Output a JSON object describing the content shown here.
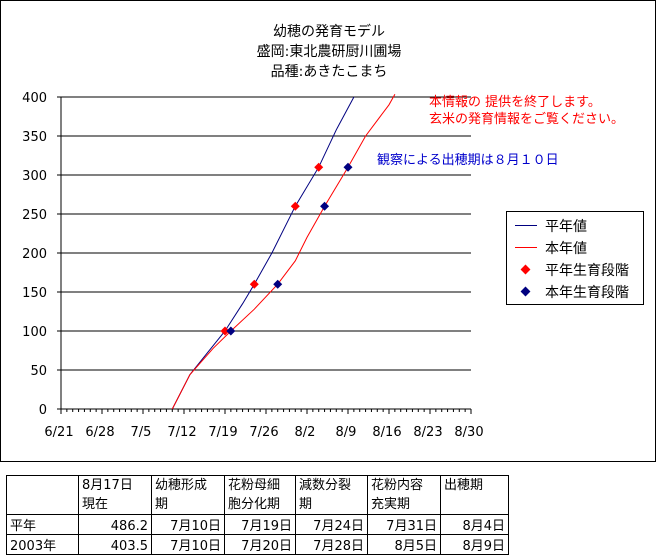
{
  "chart_data": {
    "type": "line",
    "title_lines": [
      "幼穂の発育モデル",
      "盛岡:東北農研厨川圃場",
      "品種:あきたこまち"
    ],
    "x_tick_labels": [
      "6/21",
      "6/28",
      "7/5",
      "7/12",
      "7/19",
      "7/26",
      "8/2",
      "8/9",
      "8/16",
      "8/23",
      "8/30"
    ],
    "x_tick_dates": [
      "2003-06-21",
      "2003-06-28",
      "2003-07-05",
      "2003-07-12",
      "2003-07-19",
      "2003-07-26",
      "2003-08-02",
      "2003-08-09",
      "2003-08-16",
      "2003-08-23",
      "2003-08-30"
    ],
    "ylim": [
      0,
      400
    ],
    "y_ticks": [
      0,
      50,
      100,
      150,
      200,
      250,
      300,
      350,
      400
    ],
    "grid": "horizontal",
    "legend_position": "right",
    "series": [
      {
        "name": "平年値",
        "style": "line",
        "color": "#000080",
        "points": [
          [
            "2003-07-10",
            0
          ],
          [
            "2003-07-13",
            44
          ],
          [
            "2003-07-16",
            72
          ],
          [
            "2003-07-19",
            100
          ],
          [
            "2003-07-22",
            135
          ],
          [
            "2003-07-24",
            160
          ],
          [
            "2003-07-27",
            200
          ],
          [
            "2003-07-31",
            260
          ],
          [
            "2003-08-04",
            310
          ],
          [
            "2003-08-07",
            358
          ],
          [
            "2003-08-10",
            400
          ]
        ]
      },
      {
        "name": "本年値",
        "style": "line",
        "color": "#ff0000",
        "points": [
          [
            "2003-07-10",
            0
          ],
          [
            "2003-07-13",
            44
          ],
          [
            "2003-07-17",
            78
          ],
          [
            "2003-07-20",
            100
          ],
          [
            "2003-07-24",
            128
          ],
          [
            "2003-07-28",
            160
          ],
          [
            "2003-07-31",
            190
          ],
          [
            "2003-08-02",
            220
          ],
          [
            "2003-08-05",
            260
          ],
          [
            "2003-08-09",
            310
          ],
          [
            "2003-08-12",
            350
          ],
          [
            "2003-08-16",
            390
          ],
          [
            "2003-08-17",
            403.5
          ]
        ]
      },
      {
        "name": "平年生育段階",
        "style": "marker",
        "color": "#ff0000",
        "points": [
          [
            "2003-07-19",
            100
          ],
          [
            "2003-07-24",
            160
          ],
          [
            "2003-07-31",
            260
          ],
          [
            "2003-08-04",
            310
          ]
        ]
      },
      {
        "name": "本年生育段階",
        "style": "marker",
        "color": "#000080",
        "points": [
          [
            "2003-07-20",
            100
          ],
          [
            "2003-07-28",
            160
          ],
          [
            "2003-08-05",
            260
          ],
          [
            "2003-08-09",
            310
          ]
        ]
      }
    ],
    "annotations": [
      {
        "text": "本情報の 提供を終了します。",
        "color": "#ff0000"
      },
      {
        "text": "玄米の発育情報をご覧ください。",
        "color": "#ff0000"
      },
      {
        "text": "観察による出穂期は８月１０日",
        "color": "#0000cc"
      }
    ]
  },
  "table": {
    "headers": [
      {
        "line1": "",
        "line2": ""
      },
      {
        "line1": "8月17日",
        "line2": "現在"
      },
      {
        "line1": "幼穂形成",
        "line2": "期"
      },
      {
        "line1": "花粉母細",
        "line2": "胞分化期"
      },
      {
        "line1": "減数分裂",
        "line2": "期"
      },
      {
        "line1": "花粉内容",
        "line2": "充実期"
      },
      {
        "line1": "出穂期",
        "line2": ""
      }
    ],
    "rows": [
      [
        "平年",
        "486.2",
        "7月10日",
        "7月19日",
        "7月24日",
        "7月31日",
        "8月4日"
      ],
      [
        "2003年",
        "403.5",
        "7月10日",
        "7月20日",
        "7月28日",
        "8月5日",
        "8月9日"
      ]
    ]
  }
}
